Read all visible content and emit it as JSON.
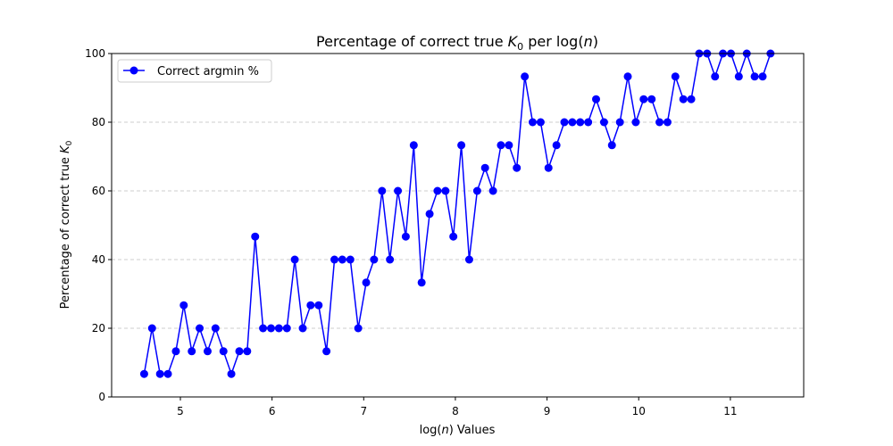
{
  "chart_data": {
    "type": "line",
    "title_main": "Percentage of correct true ",
    "title_sym": "K",
    "title_sub": "0",
    "title_rest": " per log(",
    "title_var": "n",
    "title_end": ")",
    "xlabel_main": "log(",
    "xlabel_var": "n",
    "xlabel_end": ") Values",
    "ylabel_main": "Percentage of correct true ",
    "ylabel_sym": "K",
    "ylabel_sub": "0",
    "xlim": [
      4.25,
      11.8
    ],
    "ylim": [
      0,
      100
    ],
    "xticks": [
      5,
      6,
      7,
      8,
      9,
      10,
      11
    ],
    "yticks": [
      0,
      20,
      40,
      60,
      80,
      100
    ],
    "grid": "y-dashed",
    "legend_placement": "top-left",
    "series": [
      {
        "name": "Correct argmin %",
        "color": "#0000ff",
        "marker": "circle",
        "x": [
          4.605,
          4.691,
          4.778,
          4.864,
          4.951,
          5.037,
          5.124,
          5.21,
          5.297,
          5.383,
          5.47,
          5.556,
          5.643,
          5.729,
          5.816,
          5.902,
          5.989,
          6.075,
          6.162,
          6.248,
          6.335,
          6.421,
          6.508,
          6.594,
          6.681,
          6.767,
          6.854,
          6.94,
          7.027,
          7.113,
          7.2,
          7.286,
          7.373,
          7.459,
          7.546,
          7.632,
          7.719,
          7.805,
          7.892,
          7.978,
          8.065,
          8.151,
          8.238,
          8.324,
          8.411,
          8.497,
          8.584,
          8.67,
          8.757,
          8.843,
          8.93,
          9.016,
          9.103,
          9.189,
          9.276,
          9.362,
          9.449,
          9.535,
          9.622,
          9.708,
          9.795,
          9.881,
          9.968,
          10.054,
          10.141,
          10.227,
          10.314,
          10.4,
          10.487,
          10.573,
          10.66,
          10.746,
          10.833,
          10.919,
          11.006,
          11.092,
          11.179,
          11.265,
          11.352,
          11.438
        ],
        "y": [
          6.7,
          20,
          6.7,
          6.7,
          13.3,
          26.7,
          13.3,
          20,
          13.3,
          20,
          13.3,
          6.7,
          13.3,
          13.3,
          46.7,
          20,
          20,
          20,
          20,
          40,
          20,
          26.7,
          26.7,
          13.3,
          40,
          40,
          40,
          20,
          33.3,
          40,
          60,
          40,
          60,
          46.7,
          73.3,
          33.3,
          53.3,
          60,
          60,
          46.7,
          73.3,
          40,
          60,
          66.7,
          60,
          73.3,
          73.3,
          66.7,
          93.3,
          80,
          80,
          66.7,
          73.3,
          80,
          80,
          80,
          80,
          86.7,
          80,
          73.3,
          80,
          93.3,
          80,
          86.7,
          86.7,
          80,
          80,
          93.3,
          86.7,
          86.7,
          100,
          100,
          93.3,
          100,
          100,
          93.3,
          100,
          93.3,
          93.3,
          100
        ]
      }
    ]
  }
}
